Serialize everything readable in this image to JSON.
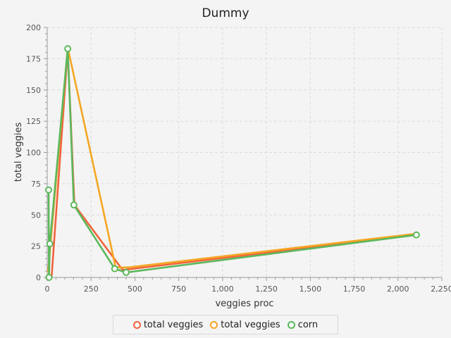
{
  "chart_data": {
    "type": "line",
    "title": "Dummy",
    "xlabel": "veggies proc",
    "ylabel": "total veggies",
    "xlim": [
      0,
      2250
    ],
    "ylim": [
      0,
      200
    ],
    "x_ticks": [
      "0",
      "250",
      "500",
      "750",
      "1,000",
      "1,250",
      "1,500",
      "1,750",
      "2,000",
      "2,250"
    ],
    "y_ticks": [
      "0",
      "25",
      "50",
      "75",
      "100",
      "125",
      "150",
      "175",
      "200"
    ],
    "grid": true,
    "legend_position": "bottom",
    "series": [
      {
        "name": "total veggies",
        "color": "#f0643c",
        "points": [
          [
            5,
            2
          ],
          [
            25,
            0
          ],
          [
            117,
            182
          ],
          [
            155,
            58
          ],
          [
            430,
            6
          ],
          [
            2105,
            34
          ]
        ]
      },
      {
        "name": "total veggies",
        "color": "#f5a623",
        "points": [
          [
            5,
            4
          ],
          [
            117,
            184
          ],
          [
            390,
            8
          ],
          [
            460,
            8
          ],
          [
            2105,
            35
          ]
        ]
      },
      {
        "name": "corn",
        "color": "#5cb85c",
        "markers": true,
        "points": [
          [
            8,
            70
          ],
          [
            10,
            0
          ],
          [
            15,
            27
          ],
          [
            117,
            183
          ],
          [
            152,
            58
          ],
          [
            385,
            7
          ],
          [
            450,
            4
          ],
          [
            2105,
            34
          ]
        ]
      }
    ]
  }
}
